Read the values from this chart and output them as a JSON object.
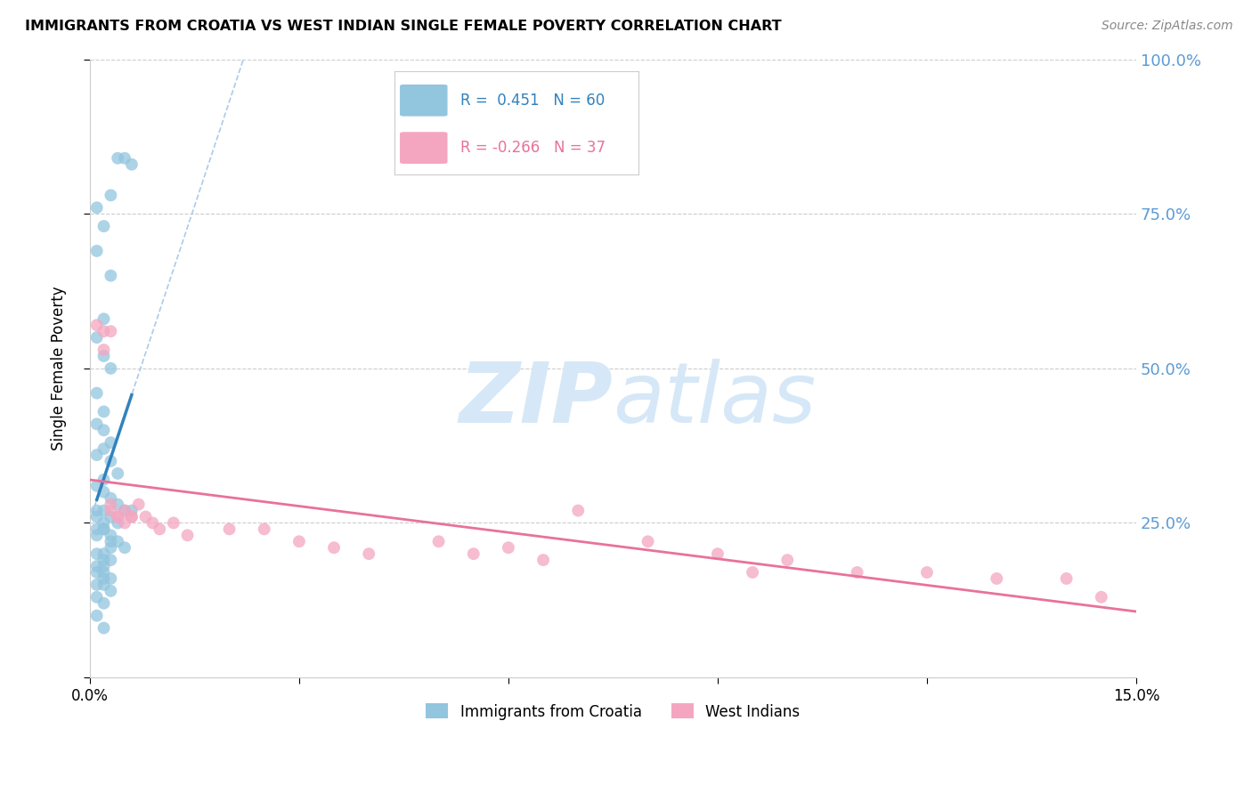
{
  "title": "IMMIGRANTS FROM CROATIA VS WEST INDIAN SINGLE FEMALE POVERTY CORRELATION CHART",
  "source": "Source: ZipAtlas.com",
  "ylabel_label": "Single Female Poverty",
  "x_min": 0.0,
  "x_max": 0.15,
  "y_min": 0.0,
  "y_max": 1.0,
  "croatia_R": 0.451,
  "croatia_N": 60,
  "west_indian_R": -0.266,
  "west_indian_N": 37,
  "croatia_color": "#92c5de",
  "west_indian_color": "#f4a6c0",
  "croatia_line_color": "#3182bd",
  "west_indian_line_color": "#e8729a",
  "dashed_line_color": "#b0c9e8",
  "background_color": "#ffffff",
  "grid_color": "#cccccc",
  "watermark_zip": "ZIP",
  "watermark_atlas": "atlas",
  "watermark_color": "#d6e8f7",
  "right_axis_color": "#5b9bd5",
  "croatia_scatter_x": [
    0.004,
    0.005,
    0.006,
    0.003,
    0.001,
    0.002,
    0.001,
    0.003,
    0.002,
    0.001,
    0.002,
    0.003,
    0.001,
    0.002,
    0.001,
    0.002,
    0.003,
    0.002,
    0.001,
    0.003,
    0.004,
    0.002,
    0.001,
    0.002,
    0.003,
    0.004,
    0.005,
    0.006,
    0.001,
    0.002,
    0.001,
    0.002,
    0.003,
    0.001,
    0.002,
    0.003,
    0.004,
    0.002,
    0.001,
    0.003,
    0.004,
    0.005,
    0.003,
    0.002,
    0.001,
    0.003,
    0.002,
    0.001,
    0.002,
    0.001,
    0.002,
    0.003,
    0.002,
    0.001,
    0.002,
    0.003,
    0.001,
    0.002,
    0.001,
    0.002
  ],
  "croatia_scatter_y": [
    0.84,
    0.84,
    0.83,
    0.78,
    0.76,
    0.73,
    0.69,
    0.65,
    0.58,
    0.55,
    0.52,
    0.5,
    0.46,
    0.43,
    0.41,
    0.4,
    0.38,
    0.37,
    0.36,
    0.35,
    0.33,
    0.32,
    0.31,
    0.3,
    0.29,
    0.28,
    0.27,
    0.27,
    0.26,
    0.25,
    0.24,
    0.24,
    0.23,
    0.27,
    0.27,
    0.26,
    0.25,
    0.24,
    0.23,
    0.22,
    0.22,
    0.21,
    0.21,
    0.2,
    0.2,
    0.19,
    0.19,
    0.18,
    0.18,
    0.17,
    0.17,
    0.16,
    0.16,
    0.15,
    0.15,
    0.14,
    0.13,
    0.12,
    0.1,
    0.08
  ],
  "west_indian_scatter_x": [
    0.001,
    0.002,
    0.003,
    0.002,
    0.003,
    0.004,
    0.003,
    0.004,
    0.005,
    0.006,
    0.007,
    0.005,
    0.006,
    0.008,
    0.009,
    0.01,
    0.012,
    0.014,
    0.02,
    0.025,
    0.03,
    0.035,
    0.04,
    0.05,
    0.055,
    0.06,
    0.065,
    0.07,
    0.08,
    0.09,
    0.095,
    0.1,
    0.11,
    0.12,
    0.13,
    0.14,
    0.145
  ],
  "west_indian_scatter_y": [
    0.57,
    0.56,
    0.56,
    0.53,
    0.27,
    0.26,
    0.28,
    0.26,
    0.25,
    0.26,
    0.28,
    0.27,
    0.26,
    0.26,
    0.25,
    0.24,
    0.25,
    0.23,
    0.24,
    0.24,
    0.22,
    0.21,
    0.2,
    0.22,
    0.2,
    0.21,
    0.19,
    0.27,
    0.22,
    0.2,
    0.17,
    0.19,
    0.17,
    0.17,
    0.16,
    0.16,
    0.13
  ]
}
